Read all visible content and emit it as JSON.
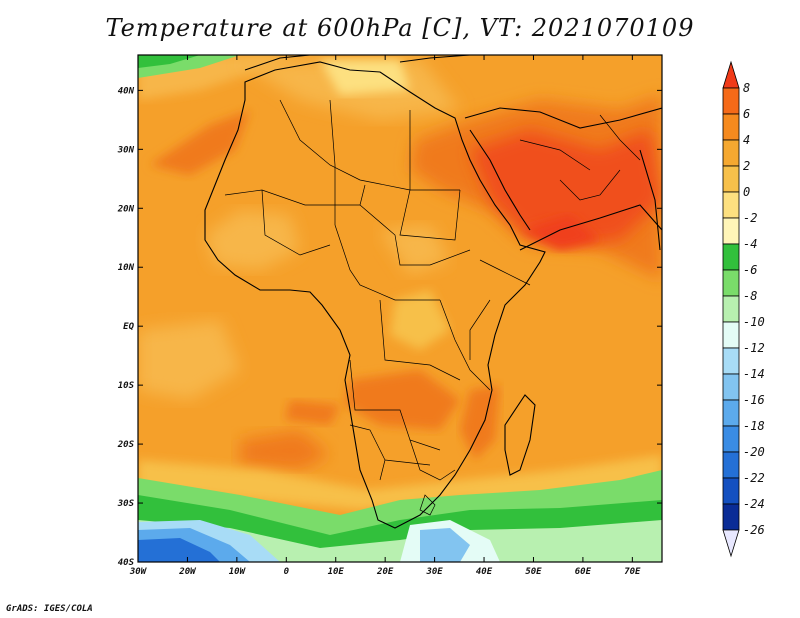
{
  "title": "Temperature at 600hPa [C], VT: 2021070109",
  "credit": "GrADS: IGES/COLA",
  "map": {
    "lon_range": [
      -30,
      76
    ],
    "lat_range": [
      -40,
      46
    ],
    "lon_ticks": [
      {
        "value": -30,
        "label": "30W"
      },
      {
        "value": -20,
        "label": "20W"
      },
      {
        "value": -10,
        "label": "10W"
      },
      {
        "value": 0,
        "label": "0"
      },
      {
        "value": 10,
        "label": "10E"
      },
      {
        "value": 20,
        "label": "20E"
      },
      {
        "value": 30,
        "label": "30E"
      },
      {
        "value": 40,
        "label": "40E"
      },
      {
        "value": 50,
        "label": "50E"
      },
      {
        "value": 60,
        "label": "60E"
      },
      {
        "value": 70,
        "label": "70E"
      }
    ],
    "lat_ticks": [
      {
        "value": 40,
        "label": "40N"
      },
      {
        "value": 30,
        "label": "30N"
      },
      {
        "value": 20,
        "label": "20N"
      },
      {
        "value": 10,
        "label": "10N"
      },
      {
        "value": 0,
        "label": "EQ"
      },
      {
        "value": -10,
        "label": "10S"
      },
      {
        "value": -20,
        "label": "20S"
      },
      {
        "value": -30,
        "label": "30S"
      },
      {
        "value": -40,
        "label": "40S"
      }
    ],
    "colors": {
      "warm_base": "#f5a02a",
      "warm_light": "#f7b648",
      "hot": "#f07a1a",
      "hottest": "#f0501a",
      "pale": "#fde69a",
      "green": "#3cc24a",
      "light_green": "#9ee892",
      "pale_blue": "#d8f8f8",
      "blue": "#4aa0e8",
      "deep_blue": "#1e60c8"
    }
  },
  "colorbar": {
    "levels": [
      "8",
      "6",
      "4",
      "2",
      "0",
      "-2",
      "-4",
      "-6",
      "-8",
      "-10",
      "-12",
      "-14",
      "-16",
      "-18",
      "-20",
      "-22",
      "-24",
      "-26"
    ],
    "colors": [
      "#f03a18",
      "#f56a18",
      "#f68a1e",
      "#f5a830",
      "#f7c04a",
      "#fde080",
      "#fff5b8",
      "#32c03c",
      "#7adc6a",
      "#b8f0b0",
      "#e4fcf6",
      "#a8dcf6",
      "#82c4f0",
      "#5caaec",
      "#3a8ce4",
      "#2470d6",
      "#1450c0",
      "#0a2c96",
      "#06186e"
    ]
  }
}
